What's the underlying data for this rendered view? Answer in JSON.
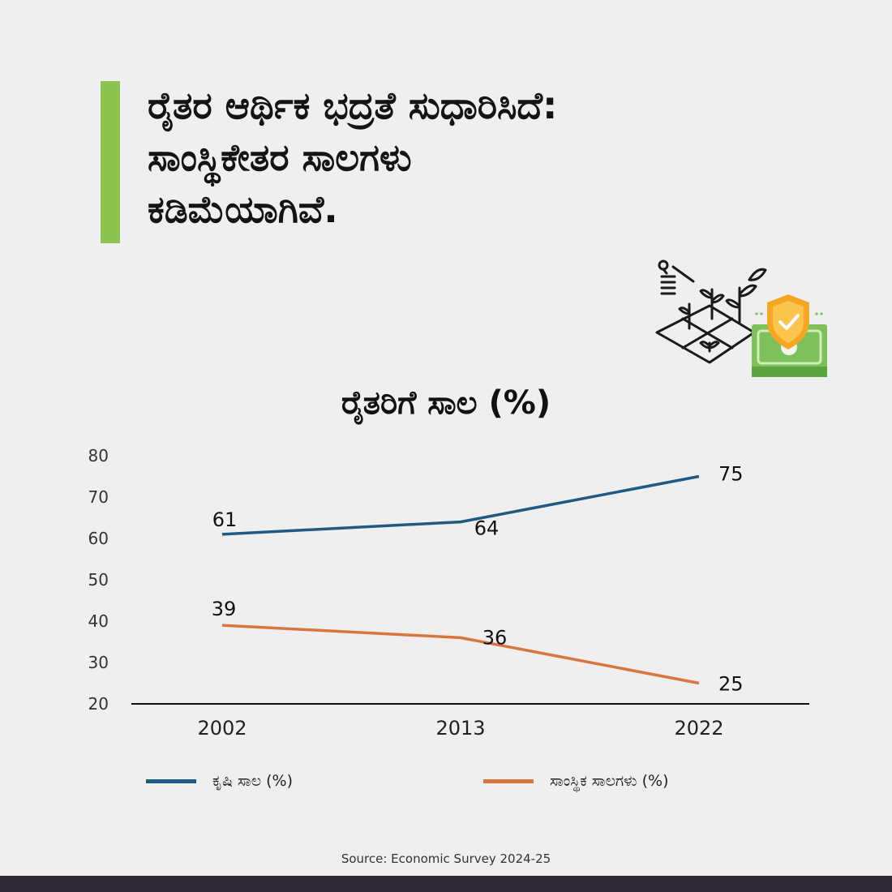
{
  "headline": {
    "line1": "ರೈತರ ಆರ್ಥಿಕ ಭದ್ರತೆ ಸುಧಾರಿಸಿದೆ:",
    "line2": "ಸಾಂಸ್ಥಿಕೇತರ ಸಾಲಗಳು",
    "line3": "ಕಡಿಮೆಯಾಗಿವೆ."
  },
  "colors": {
    "accent": "#8cc34f",
    "series_agri": "#1f5a84",
    "series_non_inst": "#d9763f",
    "background": "#efefef",
    "footer": "#2d2731"
  },
  "illustration": {
    "icons": [
      "farm-plot-icon",
      "money-shield-icon"
    ]
  },
  "chart_data": {
    "type": "line",
    "title": "ರೈತರಿಗೆ ಸಾಲ (%)",
    "categories": [
      "2002",
      "2013",
      "2022"
    ],
    "series": [
      {
        "name": "ಕೃಷಿ ಸಾಲ (%)",
        "values": [
          61,
          64,
          75
        ]
      },
      {
        "name": "ಸಾಂಸ್ಥಿಕ ಸಾಲಗಳು (%)",
        "values": [
          39,
          36,
          25
        ]
      }
    ],
    "ylim": [
      20,
      80
    ],
    "yticks": [
      20,
      30,
      40,
      50,
      60,
      70,
      80
    ],
    "grid": false,
    "data_labels": true,
    "legend_position": "bottom"
  },
  "source": "Source: Economic Survey 2024-25"
}
